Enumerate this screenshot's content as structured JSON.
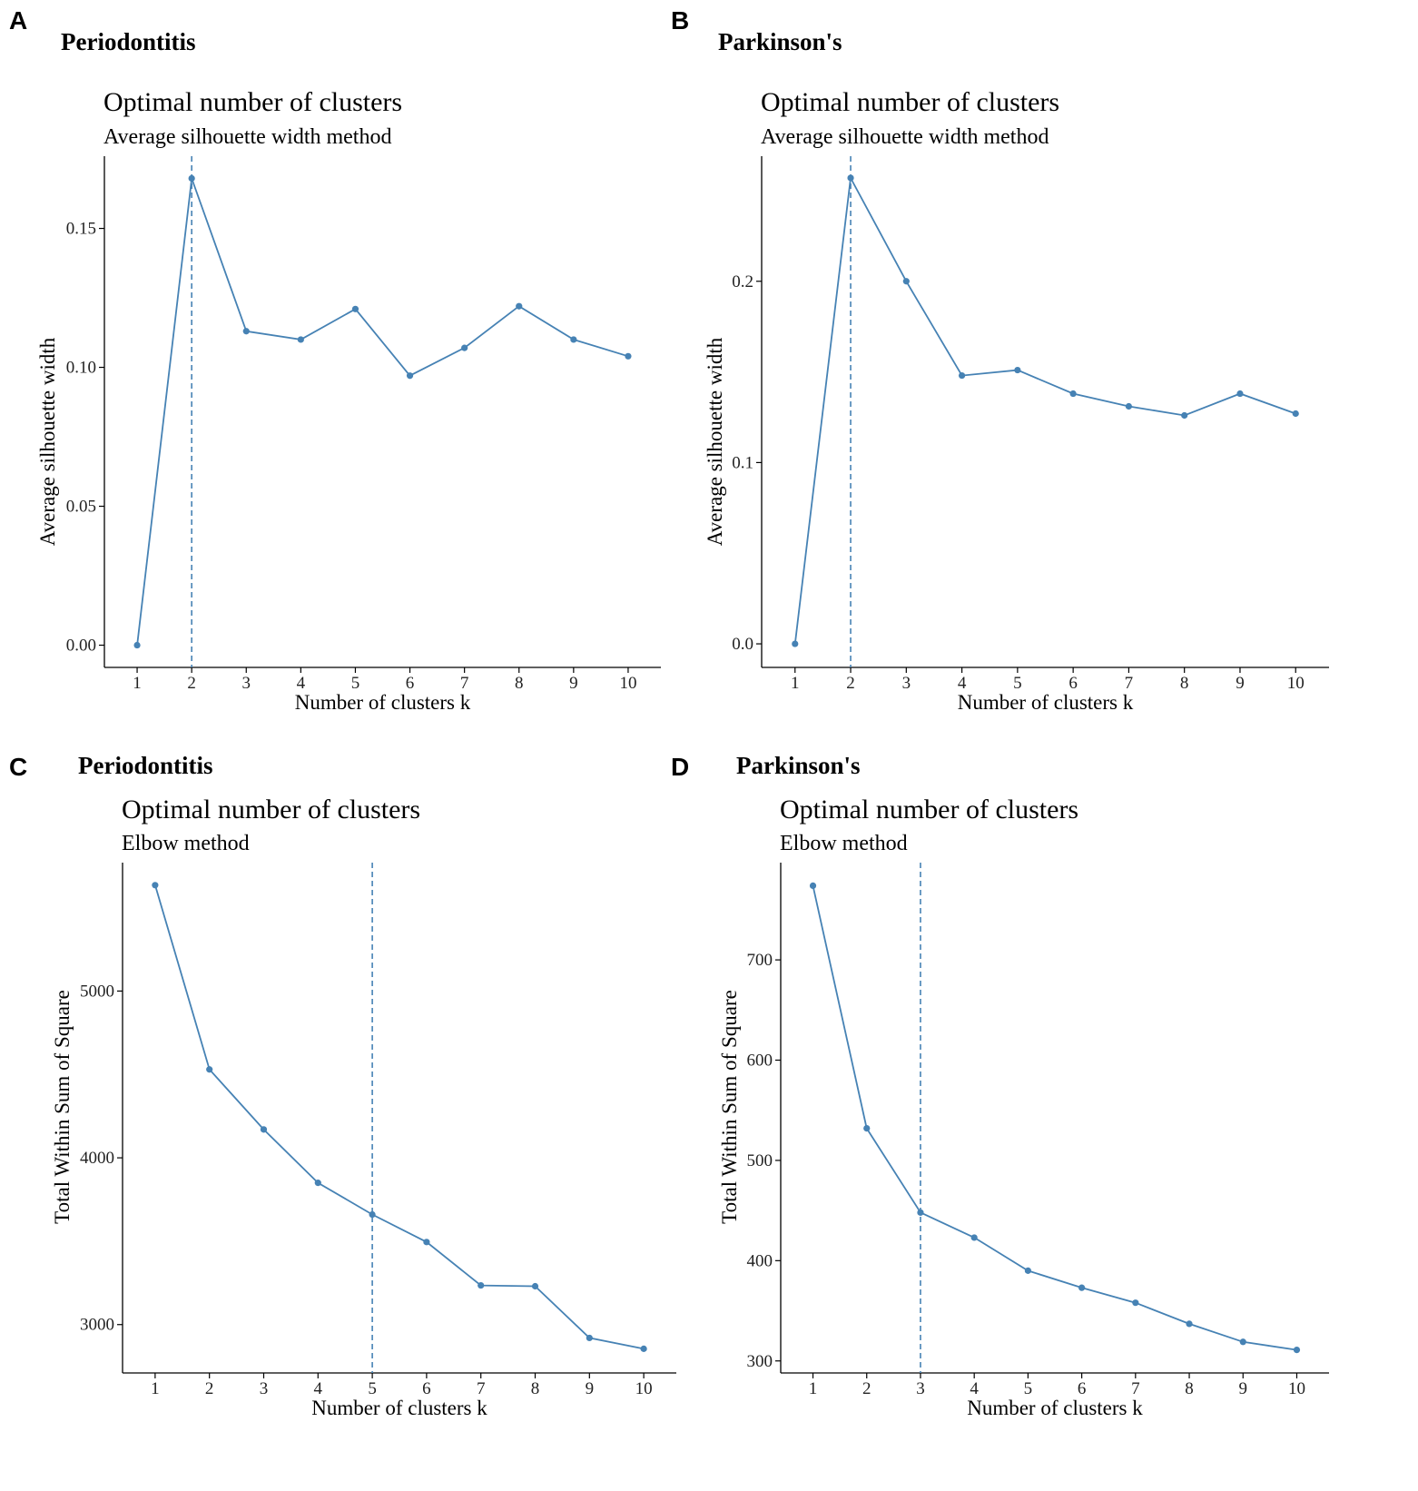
{
  "chart_data": [
    {
      "type": "line",
      "panel_letter": "A",
      "panel_title": "Periodontitis",
      "title": "Optimal number of clusters",
      "subtitle": "Average silhouette width method",
      "xlabel": "Number of clusters k",
      "ylabel": "Average silhouette width",
      "x": [
        1,
        2,
        3,
        4,
        5,
        6,
        7,
        8,
        9,
        10
      ],
      "values": [
        0.0,
        0.168,
        0.113,
        0.11,
        0.121,
        0.097,
        0.107,
        0.122,
        0.11,
        0.104
      ],
      "yticks": [
        0.0,
        0.05,
        0.1,
        0.15
      ],
      "ytick_labels": [
        "0.00",
        "0.05",
        "0.10",
        "0.15"
      ],
      "ylim": [
        -0.008,
        0.176
      ],
      "optimal_k": 2,
      "color": "#4682B4",
      "grid": false
    },
    {
      "type": "line",
      "panel_letter": "B",
      "panel_title": "Parkinson's",
      "title": "Optimal number of clusters",
      "subtitle": "Average silhouette width method",
      "xlabel": "Number of clusters k",
      "ylabel": "Average silhouette width",
      "x": [
        1,
        2,
        3,
        4,
        5,
        6,
        7,
        8,
        9,
        10
      ],
      "values": [
        0.0,
        0.257,
        0.2,
        0.148,
        0.151,
        0.138,
        0.131,
        0.126,
        0.138,
        0.127
      ],
      "yticks": [
        0.0,
        0.1,
        0.2
      ],
      "ytick_labels": [
        "0.0",
        "0.1",
        "0.2"
      ],
      "ylim": [
        -0.013,
        0.269
      ],
      "optimal_k": 2,
      "color": "#4682B4",
      "grid": false
    },
    {
      "type": "line",
      "panel_letter": "C",
      "panel_title": "Periodontitis",
      "title": "Optimal number of clusters",
      "subtitle": "Elbow method",
      "xlabel": "Number of clusters k",
      "ylabel": "Total Within Sum of Square",
      "x": [
        1,
        2,
        3,
        4,
        5,
        6,
        7,
        8,
        9,
        10
      ],
      "values": [
        5635,
        4530,
        4170,
        3850,
        3660,
        3495,
        3235,
        3230,
        2920,
        2855
      ],
      "yticks": [
        3000,
        4000,
        5000
      ],
      "ytick_labels": [
        "3000",
        "4000",
        "5000"
      ],
      "ylim": [
        2710,
        5770
      ],
      "optimal_k": 5,
      "color": "#4682B4",
      "grid": false
    },
    {
      "type": "line",
      "panel_letter": "D",
      "panel_title": "Parkinson's",
      "title": "Optimal number of clusters",
      "subtitle": "Elbow method",
      "xlabel": "Number of clusters k",
      "ylabel": "Total Within Sum of Square",
      "x": [
        1,
        2,
        3,
        4,
        5,
        6,
        7,
        8,
        9,
        10
      ],
      "values": [
        774,
        532,
        448,
        423,
        390,
        373,
        358,
        337,
        319,
        311
      ],
      "yticks": [
        300,
        400,
        500,
        600,
        700
      ],
      "ytick_labels": [
        "300",
        "400",
        "500",
        "600",
        "700"
      ],
      "ylim": [
        288,
        797
      ],
      "optimal_k": 3,
      "color": "#4682B4",
      "grid": false
    }
  ]
}
